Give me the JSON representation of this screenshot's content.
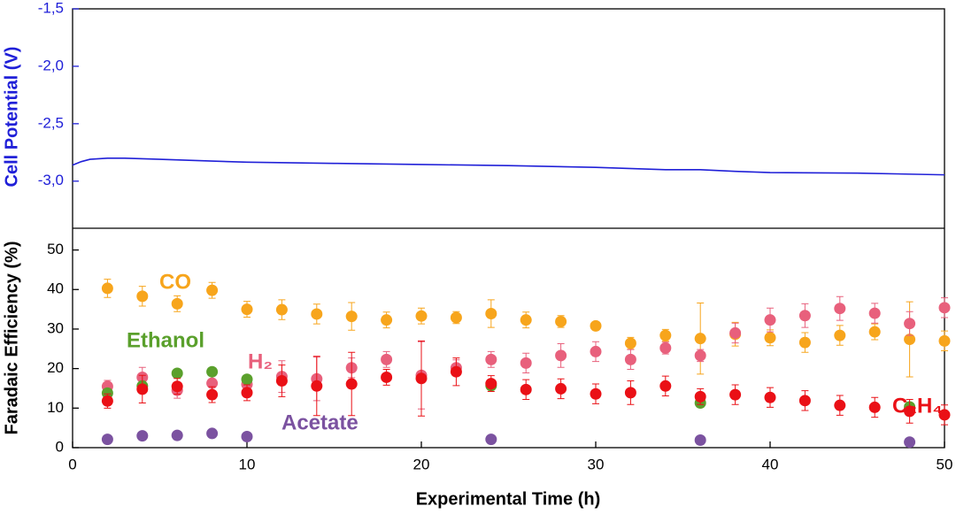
{
  "chart_data": [
    {
      "type": "line",
      "y_label": "Cell Potential (V)",
      "color": "#2020d8",
      "x": [
        0,
        0.5,
        1,
        2,
        3,
        5,
        8,
        10,
        15,
        20,
        25,
        30,
        34,
        36,
        38,
        40,
        45,
        50
      ],
      "values": [
        -2.86,
        -2.83,
        -2.81,
        -2.8,
        -2.8,
        -2.81,
        -2.825,
        -2.835,
        -2.845,
        -2.855,
        -2.865,
        -2.88,
        -2.9,
        -2.9,
        -2.915,
        -2.925,
        -2.93,
        -2.945
      ],
      "xlim": [
        0,
        50
      ],
      "ylim": [
        -3.41,
        -1.5
      ],
      "yticks": [
        {
          "value": -1.5,
          "label": "-1,5"
        },
        {
          "value": -2.0,
          "label": "-2,0"
        },
        {
          "value": -2.5,
          "label": "-2,5"
        },
        {
          "value": -3.0,
          "label": "-3,0"
        }
      ]
    },
    {
      "type": "scatter",
      "x_label": "Experimental Time (h)",
      "y_label": "Faradaic Efficiency (%)",
      "xlim": [
        0,
        50
      ],
      "ylim": [
        0,
        55.5
      ],
      "xticks": [
        0,
        10,
        20,
        30,
        40,
        50
      ],
      "yticks": [
        0,
        10,
        20,
        30,
        40,
        50
      ],
      "series": [
        {
          "name": "CO",
          "color": "#f7a51c",
          "x": [
            2,
            4,
            6,
            8,
            10,
            12,
            14,
            16,
            18,
            20,
            22,
            24,
            26,
            28,
            30,
            32,
            34,
            36,
            38,
            40,
            42,
            44,
            46,
            48,
            50
          ],
          "values": [
            40.3,
            38.3,
            36.4,
            39.8,
            35,
            34.9,
            33.8,
            33.2,
            32.3,
            33.3,
            32.9,
            33.9,
            32.3,
            31.9,
            30.8,
            26.4,
            28.4,
            27.6,
            28.7,
            27.8,
            26.6,
            28.4,
            29.3,
            27.4,
            27.0
          ],
          "errors": [
            2.3,
            2.5,
            2,
            2,
            2,
            2.5,
            2.5,
            3.5,
            2,
            2,
            1.5,
            3.5,
            2,
            1.5,
            1,
            1.5,
            1.5,
            9,
            3,
            2,
            2.5,
            2.5,
            2,
            9.5,
            2.5
          ]
        },
        {
          "name": "H₂",
          "color": "#e8607c",
          "x": [
            2,
            4,
            6,
            8,
            10,
            12,
            14,
            16,
            18,
            20,
            22,
            24,
            26,
            28,
            30,
            32,
            34,
            36,
            38,
            40,
            42,
            44,
            46,
            48,
            50
          ],
          "values": [
            15.5,
            17.8,
            14.5,
            16.3,
            16,
            18,
            17.4,
            20.2,
            22.3,
            18.3,
            20.2,
            22.3,
            21.4,
            23.3,
            24.3,
            22.3,
            25.2,
            23.3,
            29,
            32.3,
            33.4,
            35.2,
            34,
            31.4,
            35.4
          ],
          "errors": [
            1.5,
            2.5,
            2,
            2,
            2,
            4,
            5.5,
            2.5,
            2,
            8.5,
            2,
            2,
            2.5,
            3,
            2.5,
            2.5,
            1.5,
            1.5,
            2.5,
            3,
            3,
            3,
            2.5,
            3,
            2.5
          ]
        },
        {
          "name": "Ethanol",
          "color": "#5aa02c",
          "x": [
            2,
            4,
            6,
            8,
            10,
            24,
            36,
            48
          ],
          "values": [
            13.8,
            15.6,
            18.8,
            19.2,
            17.3,
            15.7,
            11.3,
            10.3
          ],
          "errors": [
            1,
            1,
            1,
            1,
            1,
            1,
            1,
            1
          ]
        },
        {
          "name": "C₂H₄",
          "color": "#ea1016",
          "x": [
            2,
            4,
            6,
            8,
            10,
            12,
            14,
            16,
            18,
            20,
            22,
            24,
            26,
            28,
            30,
            32,
            34,
            36,
            38,
            40,
            42,
            44,
            46,
            48,
            50
          ],
          "values": [
            11.8,
            14.8,
            15.5,
            13.4,
            13.9,
            16.9,
            15.6,
            16.1,
            17.8,
            17.5,
            19.2,
            16.2,
            14.7,
            14.9,
            13.6,
            13.9,
            15.6,
            12.9,
            13.4,
            12.7,
            11.9,
            10.7,
            10.2,
            9.2,
            8.3
          ],
          "errors": [
            1.8,
            3.5,
            2,
            2,
            2,
            4,
            7.5,
            8,
            2,
            9.5,
            3.5,
            2,
            2.5,
            2.5,
            2.5,
            3,
            2.5,
            2,
            2.5,
            2.5,
            2.5,
            2.5,
            2.5,
            3,
            2.5
          ]
        },
        {
          "name": "Acetate",
          "color": "#7b52a0",
          "x": [
            2,
            4,
            6,
            8,
            10,
            24,
            36,
            48
          ],
          "values": [
            2.1,
            3.0,
            3.1,
            3.6,
            2.8,
            2.1,
            1.9,
            1.4
          ],
          "errors": [
            0.3,
            0.3,
            0.3,
            0.3,
            0.3,
            0.3,
            0.3,
            0.3
          ]
        }
      ]
    }
  ]
}
